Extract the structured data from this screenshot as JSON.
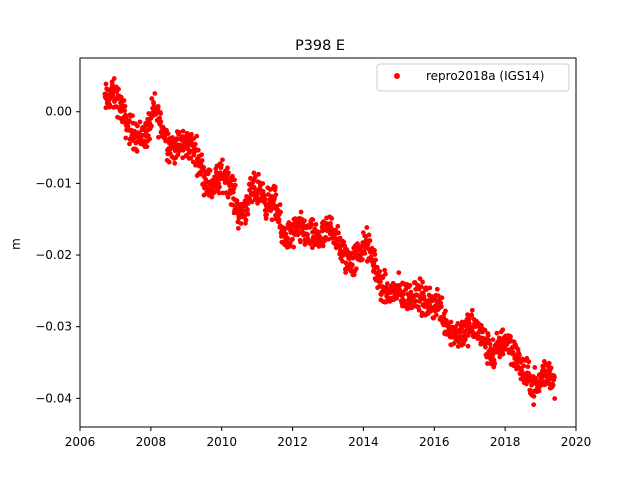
{
  "chart_data": {
    "type": "scatter",
    "title": "P398 E",
    "xlabel": "",
    "ylabel": "m",
    "xlim": [
      2006,
      2020
    ],
    "ylim": [
      -0.044,
      0.0075
    ],
    "xticks": [
      2006,
      2008,
      2010,
      2012,
      2014,
      2016,
      2018,
      2020
    ],
    "xtick_labels": [
      "2006",
      "2008",
      "2010",
      "2012",
      "2014",
      "2016",
      "2018",
      "2020"
    ],
    "yticks": [
      0.0,
      -0.01,
      -0.02,
      -0.03,
      -0.04
    ],
    "ytick_labels": [
      "0.00",
      "−0.01",
      "−0.02",
      "−0.03",
      "−0.04"
    ],
    "grid": false,
    "legend_position": "top-right",
    "series": [
      {
        "name": "repro2018a (IGS14)",
        "color": "#ff0000",
        "marker": "circle",
        "x": [
          2006.7,
          2006.9,
          2007.1,
          2007.3,
          2007.5,
          2007.7,
          2007.9,
          2008.1,
          2008.3,
          2008.5,
          2008.7,
          2008.9,
          2009.1,
          2009.3,
          2009.5,
          2009.7,
          2009.9,
          2010.1,
          2010.3,
          2010.5,
          2010.7,
          2010.9,
          2011.1,
          2011.3,
          2011.5,
          2011.7,
          2011.9,
          2012.1,
          2012.3,
          2012.5,
          2012.7,
          2012.9,
          2013.1,
          2013.3,
          2013.5,
          2013.7,
          2013.9,
          2014.1,
          2014.3,
          2014.5,
          2014.7,
          2014.9,
          2015.1,
          2015.3,
          2015.5,
          2015.7,
          2015.9,
          2016.1,
          2016.3,
          2016.5,
          2016.7,
          2016.9,
          2017.1,
          2017.3,
          2017.5,
          2017.7,
          2017.9,
          2018.1,
          2018.3,
          2018.5,
          2018.7,
          2018.9,
          2019.1,
          2019.3,
          2019.4
        ],
        "y": [
          0.0015,
          0.0025,
          0.0015,
          -0.0015,
          -0.003,
          -0.0035,
          -0.003,
          0.0005,
          -0.002,
          -0.0045,
          -0.005,
          -0.0045,
          -0.0045,
          -0.006,
          -0.009,
          -0.0105,
          -0.0095,
          -0.0085,
          -0.011,
          -0.0145,
          -0.013,
          -0.011,
          -0.011,
          -0.013,
          -0.0125,
          -0.017,
          -0.0175,
          -0.0165,
          -0.0165,
          -0.0175,
          -0.0175,
          -0.0175,
          -0.016,
          -0.0185,
          -0.0205,
          -0.021,
          -0.0195,
          -0.0185,
          -0.021,
          -0.0245,
          -0.0255,
          -0.025,
          -0.0255,
          -0.026,
          -0.025,
          -0.0265,
          -0.027,
          -0.0265,
          -0.029,
          -0.031,
          -0.031,
          -0.0305,
          -0.03,
          -0.031,
          -0.033,
          -0.034,
          -0.032,
          -0.032,
          -0.034,
          -0.0365,
          -0.0375,
          -0.0385,
          -0.0365,
          -0.0365,
          -0.0385
        ]
      }
    ]
  }
}
